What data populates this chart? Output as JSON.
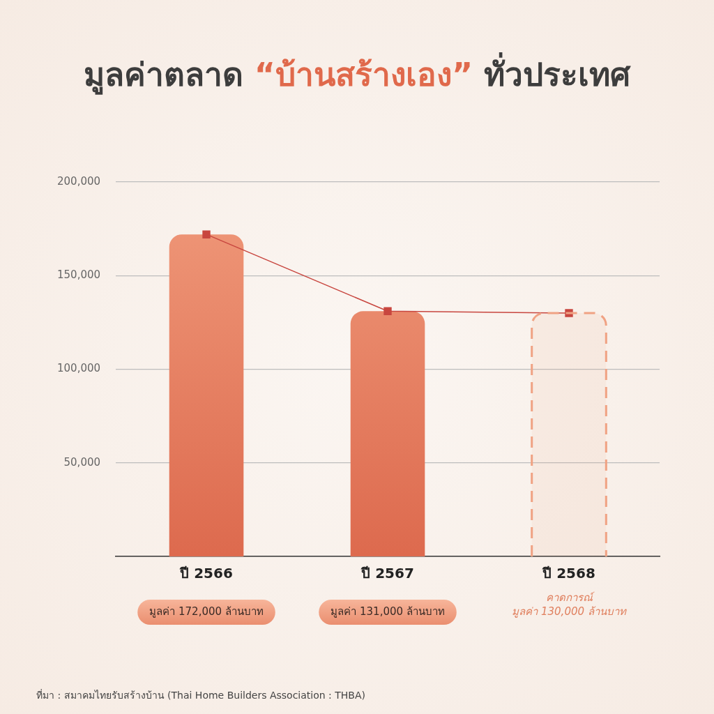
{
  "chart_data": {
    "type": "bar",
    "title": "มูลค่าตลาด “บ้านสร้างเอง” ทั่วประเทศ",
    "categories": [
      "ปี 2566",
      "ปี 2567",
      "ปี 2568"
    ],
    "series": [
      {
        "color": "#f09a7b",
        "values": [
          172000,
          131000,
          null
        ],
        "value_labels": [
          "มูลค่า 172,000 ล้านบาท",
          "มูลค่า 131,000 ล้านบาท",
          null
        ]
      },
      {
        "color": "#f0a283",
        "line_style": "dashed",
        "values": [
          null,
          null,
          130000
        ]
      },
      {
        "type": "line",
        "color": "#c8463f",
        "marker": "square",
        "values": [
          172000,
          131000,
          130000
        ]
      }
    ],
    "ylim": [
      0,
      200000
    ],
    "yticks": [
      {
        "value": 50000,
        "label": "50,000"
      },
      {
        "value": 100000,
        "label": "100,000"
      },
      {
        "value": 150000,
        "label": "150,000"
      },
      {
        "value": 200000,
        "label": "200,000"
      }
    ],
    "grid": "y",
    "legend": false,
    "annotations": [
      "คาดการณ์",
      "มูลค่า 130,000 ล้านบาท",
      "ที่มา : สมาคมไทยรับสร้างบ้าน (Thai Home Builders Association : THBA)"
    ]
  }
}
